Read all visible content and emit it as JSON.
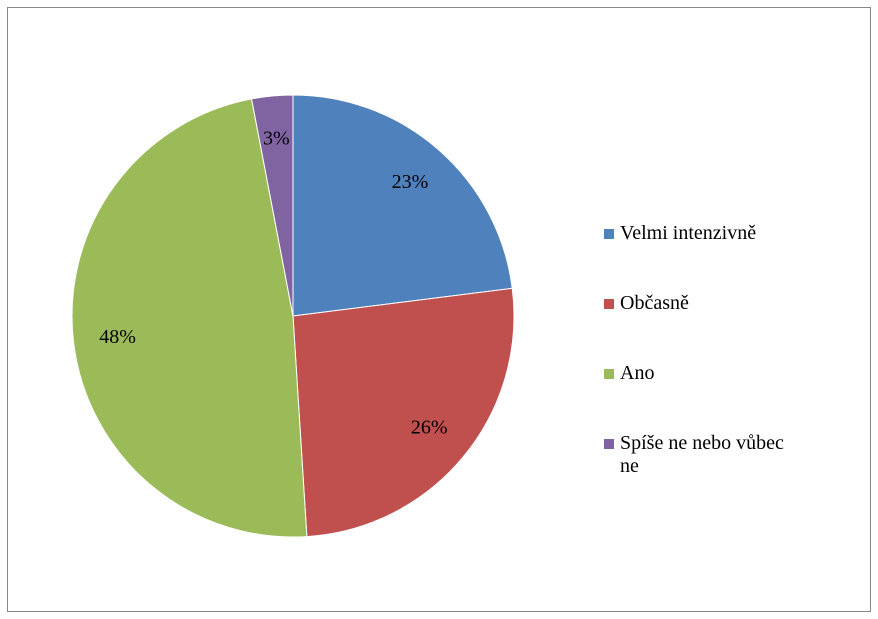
{
  "chart_data": {
    "type": "pie",
    "categories": [
      "Velmi intenzivně",
      "Občasně",
      "Ano",
      "Spíše ne nebo vůbec ne"
    ],
    "values": [
      23,
      26,
      48,
      3
    ],
    "value_labels": [
      "23%",
      "26%",
      "48%",
      "3%"
    ],
    "colors": [
      "#4f81bd",
      "#c0504d",
      "#9bbb59",
      "#8064a2"
    ],
    "legend": "right"
  }
}
